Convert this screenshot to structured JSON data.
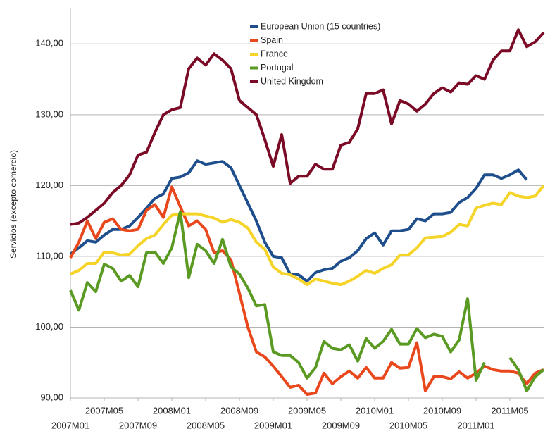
{
  "chart_data": {
    "type": "line",
    "y_label": "Servicios (excepto comercio)",
    "categories": [
      "2007M01",
      null,
      null,
      null,
      "2007M05",
      null,
      null,
      null,
      "2007M09",
      null,
      null,
      null,
      "2008M01",
      null,
      null,
      null,
      "2008M05",
      null,
      null,
      null,
      "2008M09",
      null,
      null,
      null,
      "2009M01",
      null,
      null,
      null,
      "2009M05",
      null,
      null,
      null,
      "2009M09",
      null,
      null,
      null,
      "2010M01",
      null,
      null,
      null,
      "2010M05",
      null,
      null,
      null,
      "2010M09",
      null,
      null,
      null,
      "2011M01",
      null,
      null,
      null,
      "2011M05",
      null,
      null,
      null,
      null
    ],
    "ylim": [
      90,
      145
    ],
    "yticks": [
      {
        "value": 90,
        "label": "90,00"
      },
      {
        "value": 100,
        "label": "100,00"
      },
      {
        "value": 110,
        "label": "110,00"
      },
      {
        "value": 120,
        "label": "120,00"
      },
      {
        "value": 130,
        "label": "130,00"
      },
      {
        "value": 140,
        "label": "140,00"
      }
    ],
    "grid": true,
    "legend": "top",
    "series": [
      {
        "name": "European Union (15 countries)",
        "color": "#1f4e8c",
        "values": [
          110.3,
          111.2,
          112.2,
          112,
          113,
          113.8,
          113.8,
          114.3,
          115.5,
          116.8,
          118.2,
          118.8,
          121,
          121.2,
          121.8,
          123.5,
          123,
          123.2,
          123.4,
          122.5,
          120,
          117.5,
          115,
          112,
          110,
          109.8,
          107.5,
          107.4,
          106.5,
          107.7,
          108.1,
          108.3,
          109.3,
          109.8,
          110.8,
          112.5,
          113.3,
          111.6,
          113.6,
          113.6,
          113.8,
          115.3,
          115,
          116,
          116,
          116.2,
          117.6,
          118.3,
          119.6,
          121.5,
          121.5,
          121,
          121.5,
          122.2,
          120.8,
          null,
          null
        ]
      },
      {
        "name": "Spain",
        "color": "#e8481c",
        "values": [
          109.8,
          112,
          115,
          112.5,
          114.8,
          115.3,
          113.8,
          113.6,
          113.8,
          116.5,
          117.3,
          115.5,
          119.8,
          117,
          114.3,
          115,
          113.8,
          110.5,
          110.8,
          109.5,
          104.8,
          100,
          96.5,
          95.8,
          94.5,
          93,
          91.5,
          91.8,
          90.5,
          90.7,
          93.5,
          92,
          93,
          93.8,
          92.8,
          94.3,
          92.8,
          92.8,
          95,
          94.2,
          94.3,
          97.8,
          91,
          93,
          93,
          92.7,
          93.7,
          92.8,
          93.5,
          94.5,
          94,
          93.8,
          93.8,
          93.5,
          92,
          93.5,
          94
        ]
      },
      {
        "name": "France",
        "color": "#f5d327",
        "values": [
          107.5,
          108,
          109,
          109,
          110.6,
          110.5,
          110.2,
          110.3,
          111.5,
          112.5,
          113,
          114.5,
          115.8,
          116,
          116,
          116,
          115.7,
          115.4,
          114.8,
          115.2,
          114.8,
          114,
          112,
          111,
          108.5,
          107.6,
          107.4,
          106.8,
          106,
          106.8,
          106.5,
          106.2,
          106,
          106.5,
          107.2,
          108,
          107.6,
          108.3,
          108.8,
          110.2,
          110.2,
          111.2,
          112.6,
          112.7,
          112.8,
          113.4,
          114.5,
          114.3,
          116.8,
          117.2,
          117.5,
          117.3,
          119,
          118.5,
          118.3,
          118.5,
          120
        ]
      },
      {
        "name": "Portugal",
        "color": "#5a9a22",
        "values": [
          105.2,
          102.4,
          106.3,
          105,
          108.9,
          108.3,
          106.5,
          107.3,
          105.7,
          110.5,
          110.6,
          109,
          111.2,
          116.3,
          107,
          111.7,
          110.8,
          109,
          112.4,
          108.5,
          107.5,
          105.5,
          103,
          103.2,
          96.5,
          96,
          96,
          95,
          92.8,
          94.3,
          98,
          97,
          96.8,
          97.5,
          95.2,
          98.4,
          97,
          98,
          99.7,
          97.6,
          97.6,
          99.8,
          98.5,
          99,
          98.7,
          96.5,
          98.2,
          104,
          92.5,
          95,
          null,
          null,
          95.7,
          94,
          91,
          93,
          94
        ]
      },
      {
        "name": "United Kingdom",
        "color": "#7a0a26",
        "values": [
          114.5,
          114.7,
          115.5,
          116.5,
          117.5,
          119,
          120,
          121.5,
          124.3,
          124.7,
          127.5,
          130,
          130.7,
          131,
          136.5,
          138,
          137,
          138.6,
          137.7,
          136.5,
          132,
          131,
          130,
          126.5,
          122.7,
          127.2,
          120.3,
          121.3,
          121.3,
          123,
          122.3,
          122.3,
          125.7,
          126.1,
          128,
          133,
          133,
          133.5,
          128.7,
          132,
          131.5,
          130.5,
          131.5,
          133,
          133.8,
          133.2,
          134.5,
          134.3,
          135.5,
          135,
          137.7,
          139,
          139,
          142,
          139.6,
          140.3,
          141.6
        ]
      }
    ]
  }
}
